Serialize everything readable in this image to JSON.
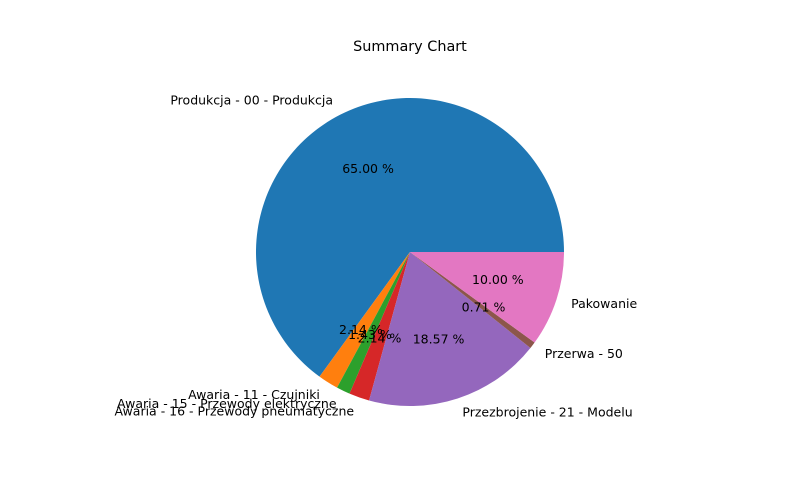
{
  "chart_data": {
    "type": "pie",
    "title": "Summary Chart",
    "start_angle_deg": 0,
    "counterclock": true,
    "slices": [
      {
        "label": "Produkcja - 00 - Produkcja",
        "percent": 65.0,
        "pct_text": "65.00 %",
        "color": "#1f77b4"
      },
      {
        "label": "Awaria - 11 - Czujniki",
        "percent": 2.14,
        "pct_text": "2.14 %",
        "color": "#ff7f0e"
      },
      {
        "label": "Awaria - 15 - Przewody elektryczne",
        "percent": 1.43,
        "pct_text": "1.43 %",
        "color": "#2ca02c"
      },
      {
        "label": "Awaria - 16 - Przewody pneumatyczne",
        "percent": 2.14,
        "pct_text": "2.14 %",
        "color": "#d62728"
      },
      {
        "label": "Przezbrojenie - 21 - Modelu",
        "percent": 18.57,
        "pct_text": "18.57 %",
        "color": "#9467bd"
      },
      {
        "label": "Przerwa - 50",
        "percent": 0.71,
        "pct_text": "0.71 %",
        "color": "#8c564b"
      },
      {
        "label": "Pakowanie",
        "percent": 10.0,
        "pct_text": "10.00 %",
        "color": "#e377c2"
      }
    ]
  }
}
